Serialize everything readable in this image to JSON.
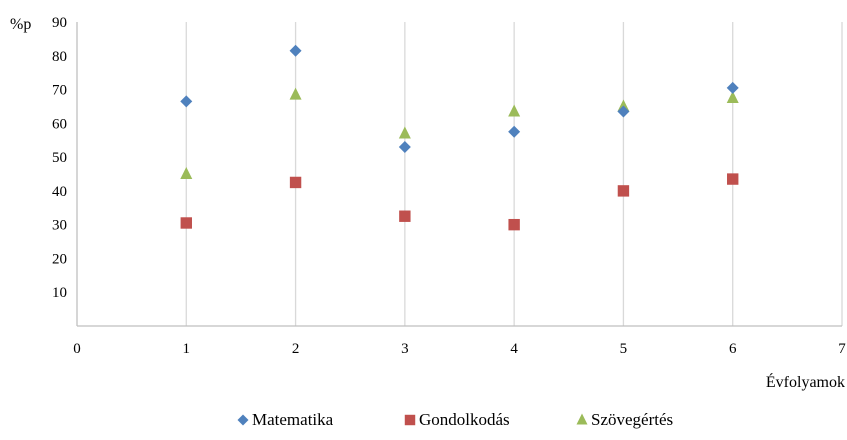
{
  "chart_data": {
    "type": "scatter",
    "ylabel": "%p",
    "xlabel": "Évfolyamok",
    "xlim": [
      0,
      7
    ],
    "ylim": [
      0,
      90
    ],
    "x_ticks": [
      "0",
      "1",
      "2",
      "3",
      "4",
      "5",
      "6",
      "7"
    ],
    "y_ticks": [
      "10",
      "20",
      "30",
      "40",
      "50",
      "60",
      "70",
      "80",
      "90"
    ],
    "grid": "vertical",
    "legend_position": "bottom",
    "series": [
      {
        "name": "Matematika",
        "marker": "diamond",
        "color": "#4f81bd",
        "points": [
          {
            "x": 1,
            "y": 66.5
          },
          {
            "x": 2,
            "y": 81.5
          },
          {
            "x": 3,
            "y": 53
          },
          {
            "x": 4,
            "y": 57.5
          },
          {
            "x": 5,
            "y": 63.5
          },
          {
            "x": 6,
            "y": 70.5
          }
        ]
      },
      {
        "name": "Gondolkodás",
        "marker": "square",
        "color": "#c0504d",
        "points": [
          {
            "x": 1,
            "y": 30.5
          },
          {
            "x": 2,
            "y": 42.5
          },
          {
            "x": 3,
            "y": 32.5
          },
          {
            "x": 4,
            "y": 30
          },
          {
            "x": 5,
            "y": 40
          },
          {
            "x": 6,
            "y": 43.5
          }
        ]
      },
      {
        "name": "Szövegértés",
        "marker": "triangle",
        "color": "#9bbb59",
        "points": [
          {
            "x": 1,
            "y": 45
          },
          {
            "x": 2,
            "y": 68.5
          },
          {
            "x": 3,
            "y": 57
          },
          {
            "x": 4,
            "y": 63.5
          },
          {
            "x": 5,
            "y": 65
          },
          {
            "x": 6,
            "y": 67.5
          }
        ]
      }
    ]
  }
}
